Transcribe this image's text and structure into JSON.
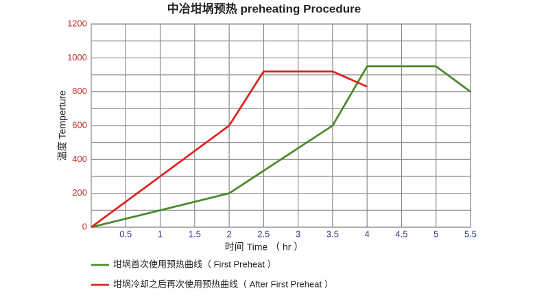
{
  "chart_data": {
    "type": "line",
    "title": "中冶坩埚预热 preheating Procedure",
    "x_label": "时间 Time （ hr ）",
    "y_label": "温度 Temperture",
    "xlim": [
      0,
      5.5
    ],
    "xticks": [
      0.5,
      1,
      1.5,
      2,
      2.5,
      3,
      3.5,
      4,
      4.5,
      5,
      5.5
    ],
    "ylim": [
      0,
      1200
    ],
    "yticks": [
      0,
      200,
      400,
      600,
      800,
      1000,
      1200
    ],
    "grid": true,
    "series": [
      {
        "name": "坩埚首次使用预热曲线（ First Preheat ）",
        "color": "#4b8b2b",
        "x": [
          0,
          1,
          2,
          3.5,
          4,
          5,
          5.5
        ],
        "values": [
          0,
          100,
          200,
          600,
          950,
          950,
          800
        ]
      },
      {
        "name": "坩埚冷却之后再次使用预热曲线（ After First Preheat ）",
        "color": "#e02320",
        "x": [
          0,
          2,
          2.5,
          3.5,
          4
        ],
        "values": [
          0,
          600,
          920,
          920,
          830
        ]
      }
    ]
  }
}
